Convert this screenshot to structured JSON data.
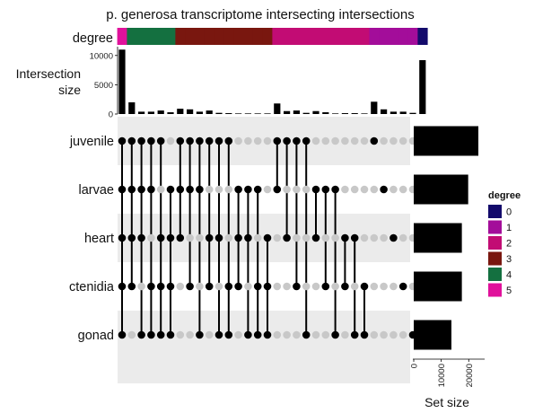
{
  "chart_data": {
    "type": "upset",
    "title": "p. generosa transcriptome intersecting intersections",
    "sets": [
      "juvenile",
      "larvae",
      "heart",
      "ctenidia",
      "gonad"
    ],
    "set_sizes": [
      23500,
      19800,
      17500,
      17500,
      13700
    ],
    "set_size_axis": {
      "label": "Set size",
      "ticks": [
        0,
        10000,
        20000
      ],
      "tick_labels": [
        "0",
        "10000",
        "20000"
      ],
      "xlim": [
        0,
        25500
      ]
    },
    "intersection_axis": {
      "label_line1": "Intersection",
      "label_line2": "size",
      "ticks": [
        0,
        5000,
        10000
      ],
      "tick_labels": [
        "0",
        "5000",
        "10000"
      ],
      "ylim": [
        0,
        11500
      ]
    },
    "degree_bar": {
      "label": "degree"
    },
    "intersections": [
      {
        "sets": [
          1,
          1,
          1,
          1,
          1
        ],
        "size": 11000
      },
      {
        "sets": [
          1,
          1,
          1,
          1,
          0
        ],
        "size": 2000
      },
      {
        "sets": [
          1,
          1,
          1,
          0,
          1
        ],
        "size": 400
      },
      {
        "sets": [
          1,
          1,
          0,
          1,
          1
        ],
        "size": 400
      },
      {
        "sets": [
          1,
          0,
          1,
          1,
          1
        ],
        "size": 600
      },
      {
        "sets": [
          0,
          1,
          1,
          1,
          1
        ],
        "size": 300
      },
      {
        "sets": [
          1,
          1,
          1,
          0,
          0
        ],
        "size": 900
      },
      {
        "sets": [
          1,
          1,
          0,
          1,
          0
        ],
        "size": 800
      },
      {
        "sets": [
          1,
          1,
          0,
          0,
          1
        ],
        "size": 400
      },
      {
        "sets": [
          1,
          0,
          1,
          1,
          0
        ],
        "size": 600
      },
      {
        "sets": [
          1,
          0,
          1,
          0,
          1
        ],
        "size": 200
      },
      {
        "sets": [
          1,
          0,
          0,
          1,
          1
        ],
        "size": 150
      },
      {
        "sets": [
          0,
          1,
          1,
          1,
          0
        ],
        "size": 100
      },
      {
        "sets": [
          0,
          1,
          1,
          0,
          1
        ],
        "size": 100
      },
      {
        "sets": [
          0,
          1,
          0,
          1,
          1
        ],
        "size": 100
      },
      {
        "sets": [
          0,
          0,
          1,
          1,
          1
        ],
        "size": 100
      },
      {
        "sets": [
          1,
          1,
          0,
          0,
          0
        ],
        "size": 1800
      },
      {
        "sets": [
          1,
          0,
          1,
          0,
          0
        ],
        "size": 500
      },
      {
        "sets": [
          1,
          0,
          0,
          1,
          0
        ],
        "size": 600
      },
      {
        "sets": [
          1,
          0,
          0,
          0,
          1
        ],
        "size": 200
      },
      {
        "sets": [
          0,
          1,
          1,
          0,
          0
        ],
        "size": 500
      },
      {
        "sets": [
          0,
          1,
          0,
          1,
          0
        ],
        "size": 300
      },
      {
        "sets": [
          0,
          1,
          0,
          0,
          1
        ],
        "size": 100
      },
      {
        "sets": [
          0,
          0,
          1,
          1,
          0
        ],
        "size": 150
      },
      {
        "sets": [
          0,
          0,
          1,
          0,
          1
        ],
        "size": 150
      },
      {
        "sets": [
          0,
          0,
          0,
          1,
          1
        ],
        "size": 100
      },
      {
        "sets": [
          1,
          0,
          0,
          0,
          0
        ],
        "size": 2100
      },
      {
        "sets": [
          0,
          1,
          0,
          0,
          0
        ],
        "size": 800
      },
      {
        "sets": [
          0,
          0,
          1,
          0,
          0
        ],
        "size": 400
      },
      {
        "sets": [
          0,
          0,
          0,
          1,
          0
        ],
        "size": 400
      },
      {
        "sets": [
          0,
          0,
          0,
          0,
          1
        ],
        "size": 200
      },
      {
        "sets": [
          0,
          0,
          0,
          0,
          0
        ],
        "size": 9200
      }
    ],
    "legend": {
      "title": "degree",
      "placement": "right",
      "entries": [
        {
          "label": "0",
          "color": "#130a6b"
        },
        {
          "label": "1",
          "color": "#a30d9a"
        },
        {
          "label": "2",
          "color": "#c20c74"
        },
        {
          "label": "3",
          "color": "#79170f"
        },
        {
          "label": "4",
          "color": "#147040"
        },
        {
          "label": "5",
          "color": "#e0119b"
        }
      ]
    },
    "colors": {
      "bar": "#000000",
      "dot_active": "#000000",
      "dot_inactive": "#c8c8c8",
      "stripe": "#ebebeb"
    }
  }
}
